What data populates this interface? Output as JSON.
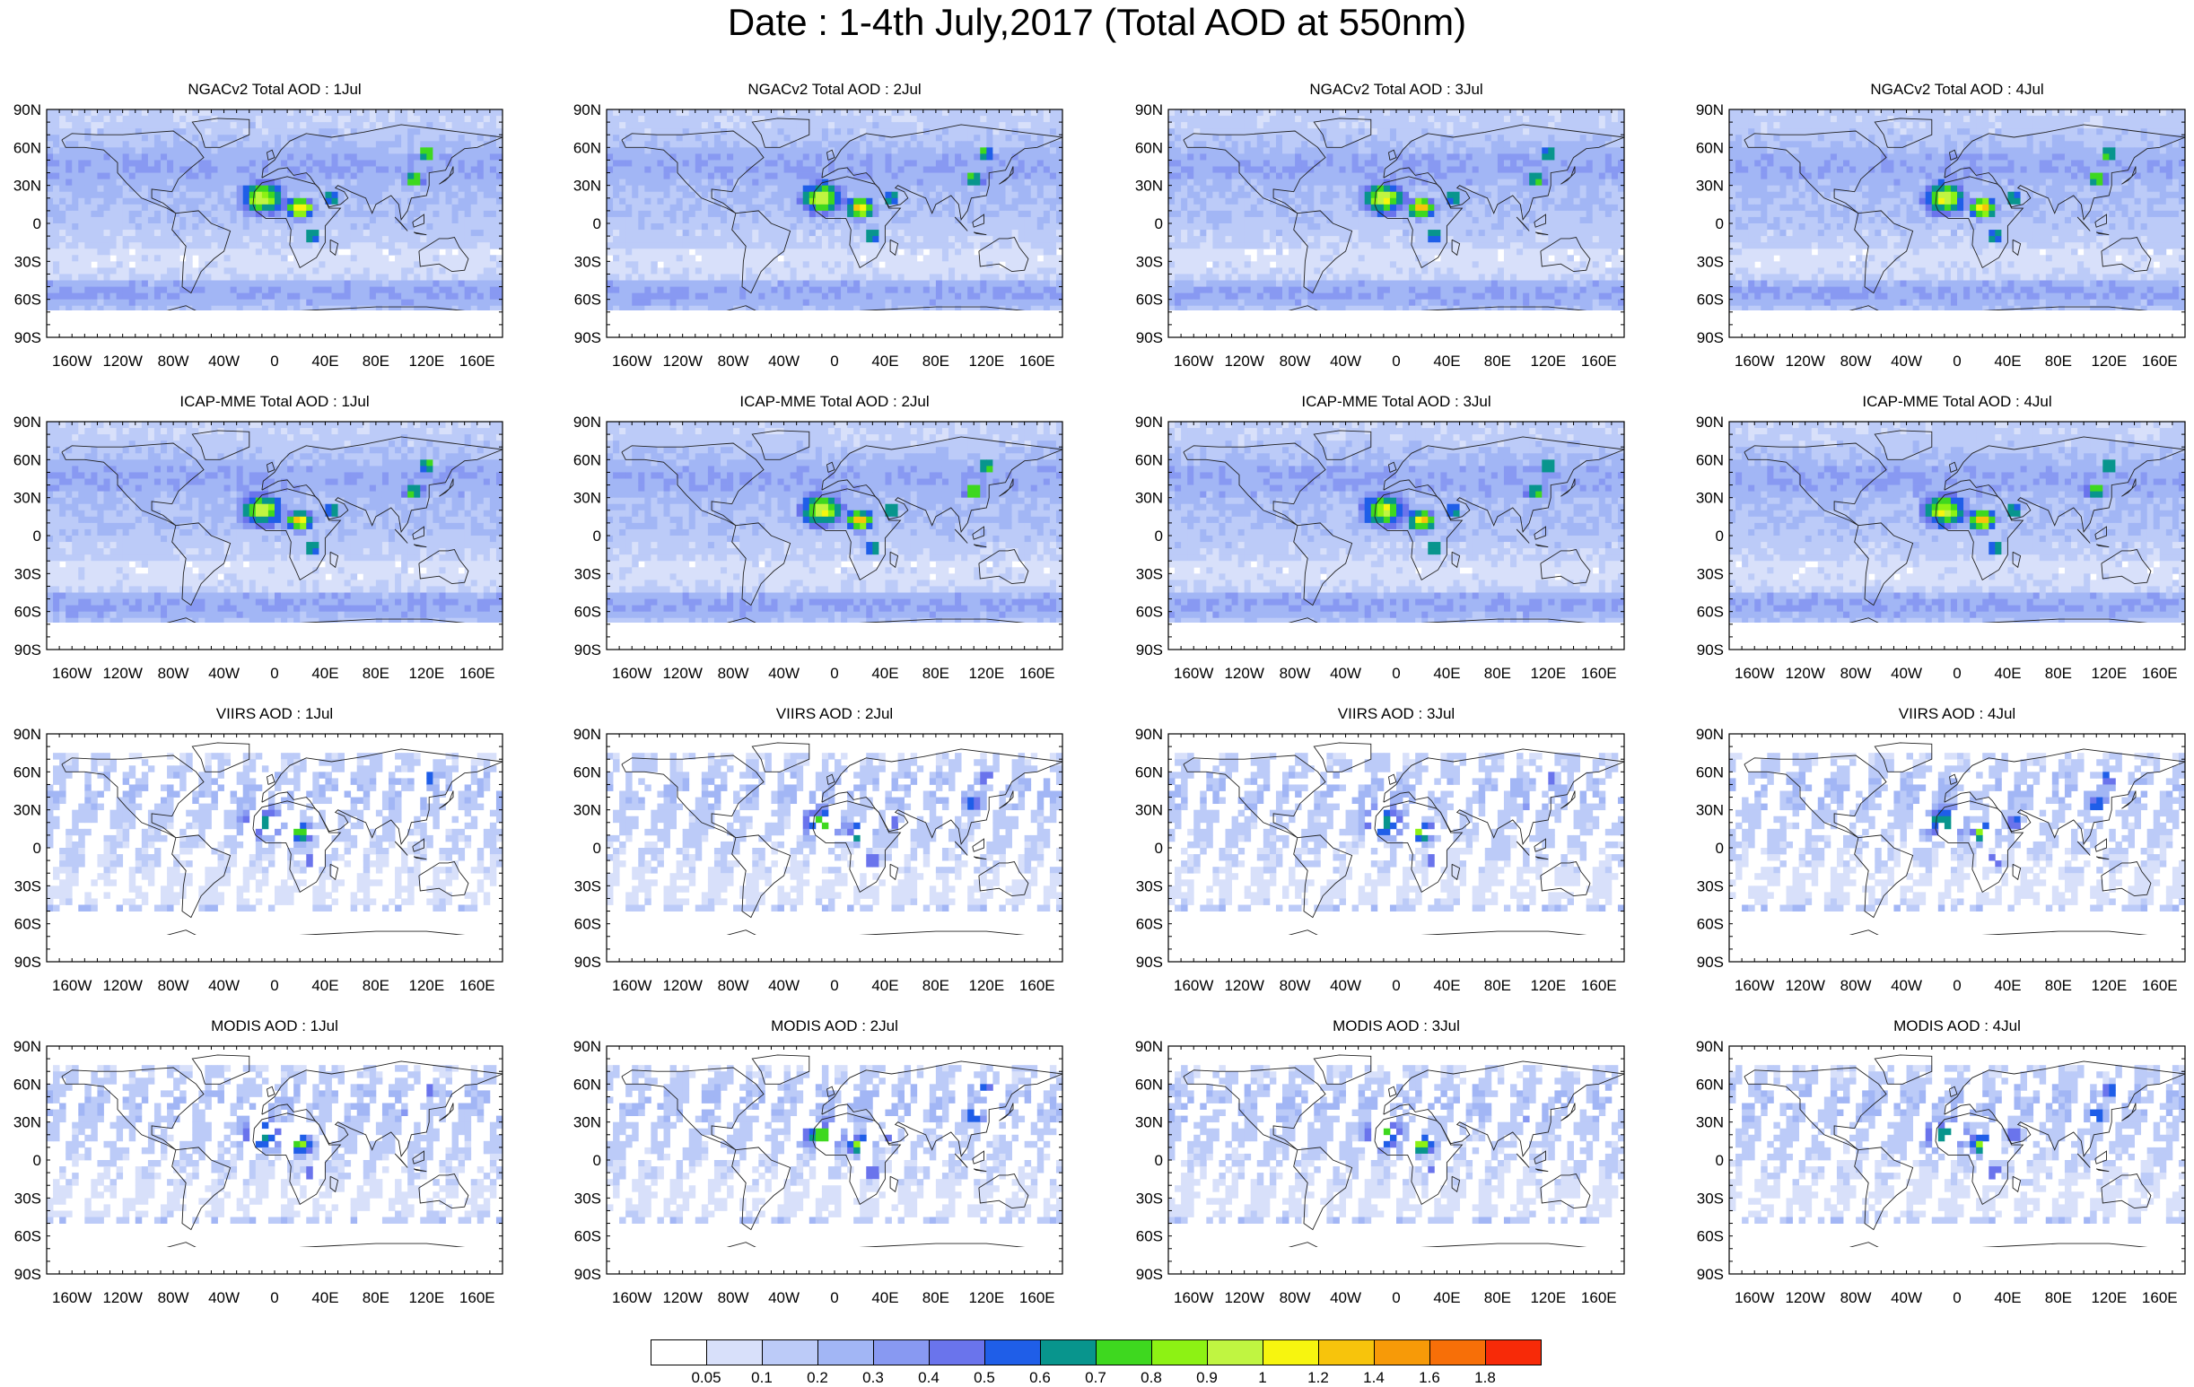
{
  "title": "Date : 1-4th July,2017 (Total AOD at 550nm)",
  "colors": {
    "levels": [
      "#ffffff",
      "#d8e0fa",
      "#bccbf8",
      "#a2b6f5",
      "#8899f2",
      "#6a74ec",
      "#1f5ee8",
      "#08958d",
      "#3ed81f",
      "#8df214",
      "#c0f541",
      "#f7f50f",
      "#f7c40c",
      "#f79a08",
      "#f76f08",
      "#f72a08"
    ]
  },
  "colorbar": {
    "labels": [
      "0.05",
      "0.1",
      "0.2",
      "0.3",
      "0.4",
      "0.5",
      "0.6",
      "0.7",
      "0.8",
      "0.9",
      "1",
      "1.2",
      "1.4",
      "1.6",
      "1.8"
    ]
  },
  "axes": {
    "lat_labels": [
      "90N",
      "60N",
      "30N",
      "0",
      "30S",
      "60S",
      "90S"
    ],
    "lon_labels": [
      "160W",
      "120W",
      "80W",
      "40W",
      "0",
      "40E",
      "80E",
      "120E",
      "160E"
    ]
  },
  "panels": [
    {
      "title": "NGACv2 Total AOD : 1Jul"
    },
    {
      "title": "NGACv2 Total AOD : 2Jul"
    },
    {
      "title": "NGACv2 Total AOD : 3Jul"
    },
    {
      "title": "NGACv2 Total AOD : 4Jul"
    },
    {
      "title": "ICAP-MME Total AOD : 1Jul"
    },
    {
      "title": "ICAP-MME Total AOD : 2Jul"
    },
    {
      "title": "ICAP-MME Total AOD : 3Jul"
    },
    {
      "title": "ICAP-MME Total AOD : 4Jul"
    },
    {
      "title": "VIIRS AOD : 1Jul"
    },
    {
      "title": "VIIRS AOD : 2Jul"
    },
    {
      "title": "VIIRS AOD : 3Jul"
    },
    {
      "title": "VIIRS AOD : 4Jul"
    },
    {
      "title": "MODIS AOD : 1Jul"
    },
    {
      "title": "MODIS AOD : 2Jul"
    },
    {
      "title": "MODIS AOD : 3Jul"
    },
    {
      "title": "MODIS AOD : 4Jul"
    }
  ],
  "chart_data": {
    "type": "heatmap",
    "title": "Date : 1-4th July,2017 (Total AOD at 550nm)",
    "variable": "Total AOD at 550nm",
    "x_range": [
      -180,
      180
    ],
    "y_range": [
      -90,
      90
    ],
    "rows": [
      "NGACv2",
      "ICAP-MME",
      "VIIRS",
      "MODIS"
    ],
    "columns": [
      "1Jul",
      "2Jul",
      "3Jul",
      "4Jul"
    ],
    "contour_levels": [
      0.05,
      0.1,
      0.2,
      0.3,
      0.4,
      0.5,
      0.6,
      0.7,
      0.8,
      0.9,
      1,
      1.2,
      1.4,
      1.6,
      1.8
    ],
    "grid": false,
    "legend": "bottom"
  }
}
